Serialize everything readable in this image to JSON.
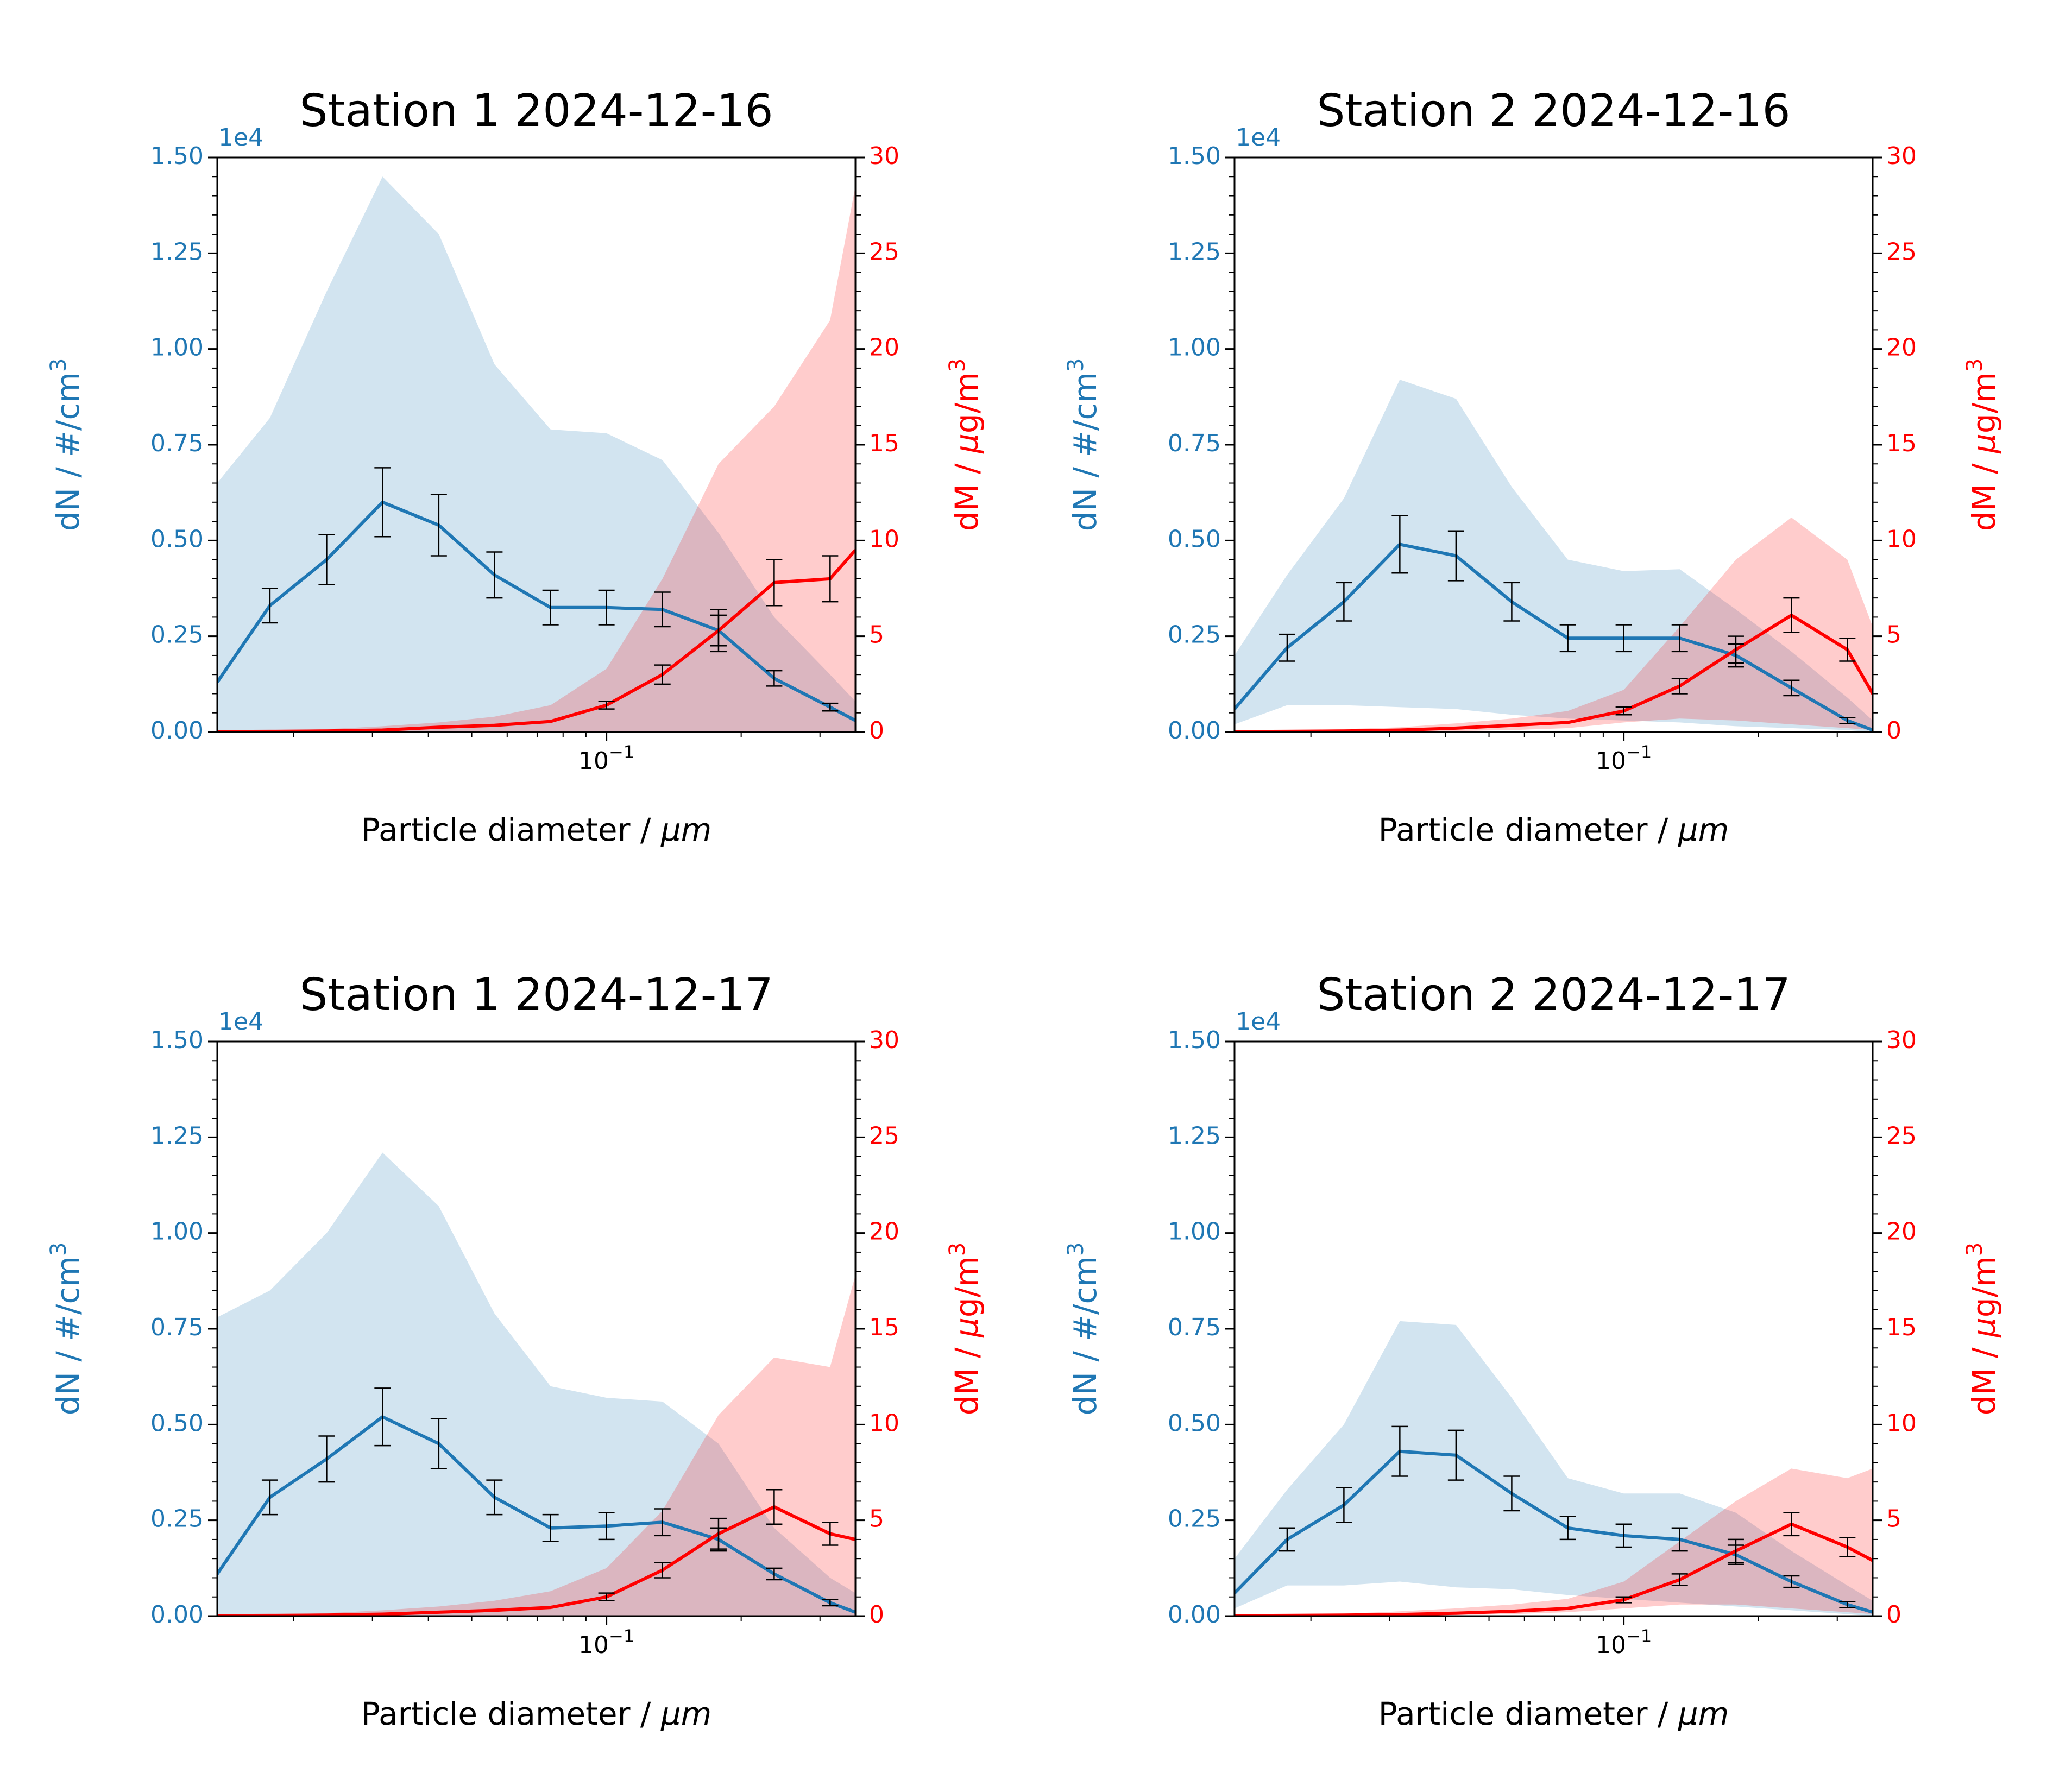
{
  "colors": {
    "number": "#1f77b4",
    "mass": "#ff0000",
    "number_band": "#1f77b4",
    "mass_band": "#ff0000",
    "errorbar": "#000000",
    "axes": "#000000"
  },
  "common": {
    "xlabel_prefix": "Particle diameter / ",
    "xlabel_unit": "μm",
    "ylabel_left": "dN / #/cm",
    "ylabel_left_sup": "3",
    "ylabel_right_prefix": "dM / ",
    "ylabel_right_unit": "μ",
    "ylabel_right_suffix": "g/m",
    "ylabel_right_sup": "3",
    "offset_text": "1e4",
    "x_tick_base": "10",
    "x_tick_exp": "−1",
    "left_ticks": [
      "0.00",
      "0.25",
      "0.50",
      "0.75",
      "1.00",
      "1.25",
      "1.50"
    ],
    "right_ticks": [
      "0",
      "5",
      "10",
      "15",
      "20",
      "25",
      "30"
    ]
  },
  "chart_data": [
    {
      "type": "line",
      "title": "Station 1 2024-12-16",
      "xscale": "log",
      "xlim": [
        0.0135,
        0.36
      ],
      "ylim_left": [
        0,
        15000
      ],
      "ylim_right": [
        0,
        30
      ],
      "x": [
        0.0135,
        0.0177,
        0.0237,
        0.0316,
        0.0422,
        0.0562,
        0.075,
        0.1,
        0.1334,
        0.178,
        0.237,
        0.316,
        0.36
      ],
      "number": {
        "values": [
          1300,
          3300,
          4500,
          6000,
          5400,
          4100,
          3250,
          3250,
          3200,
          2650,
          1400,
          650,
          300
        ],
        "err": [
          null,
          450,
          650,
          900,
          800,
          600,
          450,
          450,
          450,
          400,
          200,
          100,
          null
        ],
        "band_upper": [
          6500,
          8200,
          11500,
          14500,
          13000,
          9600,
          7900,
          7800,
          7100,
          5200,
          3000,
          1500,
          800
        ],
        "band_lower": [
          0,
          0,
          0,
          0,
          0,
          0,
          0,
          0,
          0,
          0,
          0,
          0,
          0
        ]
      },
      "mass": {
        "values": [
          0.02,
          0.03,
          0.05,
          0.1,
          0.25,
          0.35,
          0.55,
          1.4,
          3.0,
          5.3,
          7.8,
          8.0,
          9.5
        ],
        "err": [
          null,
          null,
          null,
          null,
          null,
          null,
          null,
          0.2,
          0.5,
          1.1,
          1.2,
          1.2,
          null
        ],
        "band_upper": [
          0.05,
          0.08,
          0.15,
          0.3,
          0.5,
          0.8,
          1.4,
          3.3,
          8.0,
          14.0,
          17.0,
          21.5,
          28.5
        ],
        "band_lower": [
          0,
          0,
          0,
          0,
          0,
          0,
          0,
          0,
          0,
          0,
          0,
          0,
          0
        ]
      }
    },
    {
      "type": "line",
      "title": "Station 2 2024-12-16",
      "xscale": "log",
      "xlim": [
        0.0135,
        0.36
      ],
      "ylim_left": [
        0,
        15000
      ],
      "ylim_right": [
        0,
        30
      ],
      "x": [
        0.0135,
        0.0177,
        0.0237,
        0.0316,
        0.0422,
        0.0562,
        0.075,
        0.1,
        0.1334,
        0.178,
        0.237,
        0.316,
        0.36
      ],
      "number": {
        "values": [
          600,
          2200,
          3400,
          4900,
          4600,
          3400,
          2450,
          2450,
          2450,
          2000,
          1150,
          300,
          50
        ],
        "err": [
          null,
          350,
          500,
          750,
          650,
          500,
          350,
          350,
          350,
          300,
          200,
          80,
          null
        ],
        "band_upper": [
          2000,
          4100,
          6100,
          9200,
          8700,
          6400,
          4500,
          4200,
          4250,
          3200,
          2100,
          900,
          300
        ],
        "band_lower": [
          200,
          700,
          700,
          650,
          600,
          450,
          350,
          300,
          250,
          150,
          100,
          50,
          0
        ]
      },
      "mass": {
        "values": [
          0.02,
          0.03,
          0.05,
          0.1,
          0.2,
          0.35,
          0.5,
          1.1,
          2.4,
          4.3,
          6.1,
          4.3,
          2.0
        ],
        "err": [
          null,
          null,
          null,
          null,
          null,
          null,
          null,
          0.2,
          0.4,
          0.7,
          0.9,
          0.6,
          null
        ],
        "band_upper": [
          0.05,
          0.08,
          0.15,
          0.25,
          0.45,
          0.7,
          1.1,
          2.2,
          5.5,
          9.0,
          11.2,
          9.0,
          5.5
        ],
        "band_lower": [
          0,
          0,
          0,
          0.02,
          0.05,
          0.1,
          0.2,
          0.5,
          0.7,
          0.6,
          0.4,
          0.2,
          0.1
        ]
      }
    },
    {
      "type": "line",
      "title": "Station 1 2024-12-17",
      "xscale": "log",
      "xlim": [
        0.0135,
        0.36
      ],
      "ylim_left": [
        0,
        15000
      ],
      "ylim_right": [
        0,
        30
      ],
      "x": [
        0.0135,
        0.0177,
        0.0237,
        0.0316,
        0.0422,
        0.0562,
        0.075,
        0.1,
        0.1334,
        0.178,
        0.237,
        0.316,
        0.36
      ],
      "number": {
        "values": [
          1100,
          3100,
          4100,
          5200,
          4500,
          3100,
          2300,
          2350,
          2450,
          2000,
          1100,
          350,
          100
        ],
        "err": [
          null,
          450,
          600,
          750,
          650,
          450,
          350,
          350,
          350,
          300,
          150,
          80,
          null
        ],
        "band_upper": [
          7800,
          8500,
          10000,
          12100,
          10700,
          7900,
          6000,
          5700,
          5600,
          4500,
          2300,
          1000,
          600
        ],
        "band_lower": [
          0,
          0,
          0,
          0,
          0,
          0,
          0,
          0,
          0,
          0,
          0,
          0,
          0
        ]
      },
      "mass": {
        "values": [
          0.02,
          0.03,
          0.05,
          0.1,
          0.2,
          0.3,
          0.45,
          1.0,
          2.4,
          4.3,
          5.7,
          4.3,
          4.0
        ],
        "err": [
          null,
          null,
          null,
          null,
          null,
          null,
          null,
          0.2,
          0.4,
          0.8,
          0.9,
          0.6,
          null
        ],
        "band_upper": [
          0.05,
          0.08,
          0.15,
          0.3,
          0.5,
          0.8,
          1.3,
          2.5,
          5.5,
          10.5,
          13.5,
          13.0,
          17.8
        ],
        "band_lower": [
          0,
          0,
          0,
          0,
          0,
          0,
          0,
          0,
          0,
          0,
          0,
          0,
          0
        ]
      }
    },
    {
      "type": "line",
      "title": "Station 2 2024-12-17",
      "xscale": "log",
      "xlim": [
        0.0135,
        0.36
      ],
      "ylim_left": [
        0,
        15000
      ],
      "ylim_right": [
        0,
        30
      ],
      "x": [
        0.0135,
        0.0177,
        0.0237,
        0.0316,
        0.0422,
        0.0562,
        0.075,
        0.1,
        0.1334,
        0.178,
        0.237,
        0.316,
        0.36
      ],
      "number": {
        "values": [
          600,
          2000,
          2900,
          4300,
          4200,
          3200,
          2300,
          2100,
          2000,
          1600,
          900,
          300,
          100
        ],
        "err": [
          null,
          300,
          450,
          650,
          650,
          450,
          300,
          300,
          300,
          250,
          150,
          80,
          null
        ],
        "band_upper": [
          1500,
          3300,
          5000,
          7700,
          7600,
          5700,
          3600,
          3200,
          3200,
          2700,
          1700,
          800,
          400
        ],
        "band_lower": [
          200,
          800,
          800,
          900,
          750,
          700,
          550,
          450,
          350,
          250,
          150,
          50,
          0
        ]
      },
      "mass": {
        "values": [
          0.02,
          0.03,
          0.05,
          0.08,
          0.15,
          0.25,
          0.4,
          0.85,
          1.9,
          3.4,
          4.8,
          3.6,
          2.9
        ],
        "err": [
          null,
          null,
          null,
          null,
          null,
          null,
          null,
          0.15,
          0.3,
          0.6,
          0.6,
          0.5,
          null
        ],
        "band_upper": [
          0.05,
          0.08,
          0.12,
          0.25,
          0.4,
          0.6,
          0.9,
          1.8,
          3.9,
          6.0,
          7.7,
          7.2,
          7.7
        ],
        "band_lower": [
          0,
          0,
          0,
          0.02,
          0.05,
          0.1,
          0.2,
          0.4,
          0.6,
          0.6,
          0.4,
          0.2,
          0.1
        ]
      }
    }
  ]
}
